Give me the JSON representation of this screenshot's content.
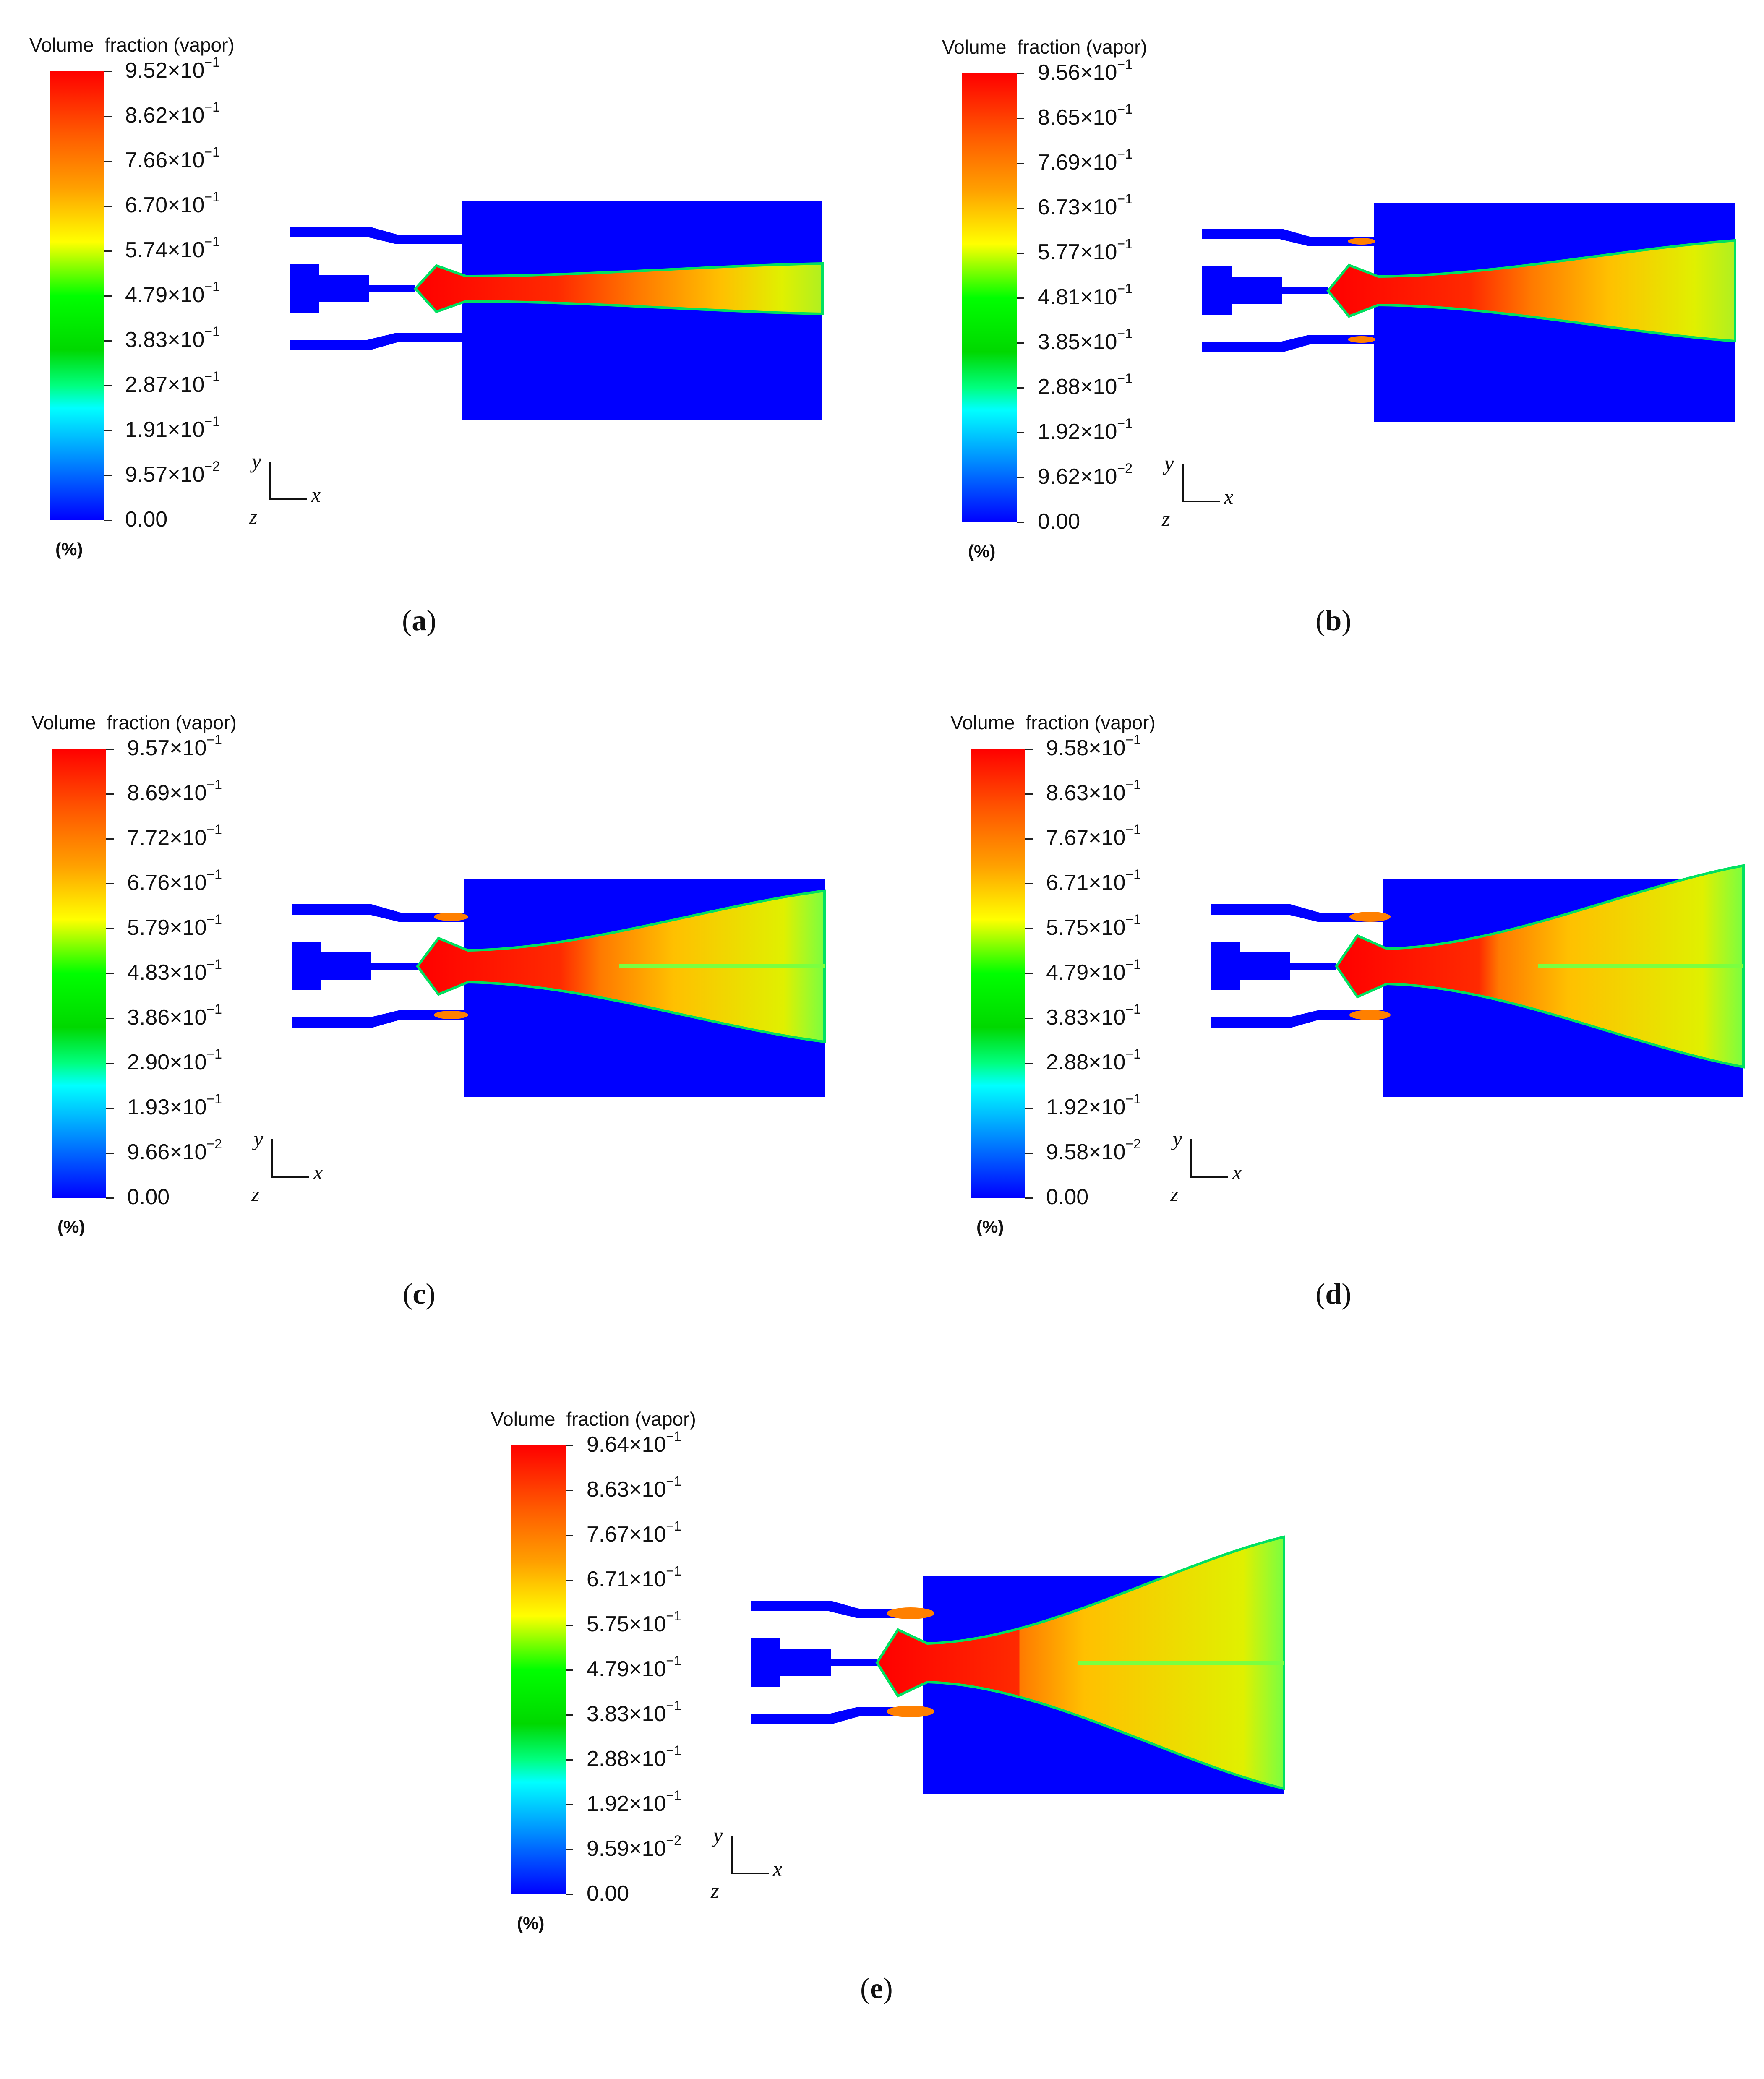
{
  "legend_title_word1": "Volume",
  "legend_title_word2": "fraction (vapor)",
  "unit_label": "(%)",
  "axis_labels": {
    "y": "y",
    "z": "z",
    "x": "x"
  },
  "colormap": [
    "#ff0000",
    "#ff5a00",
    "#ffa000",
    "#ffff00",
    "#00ff00",
    "#00ffff",
    "#0000ff"
  ],
  "panels": [
    {
      "id": "a",
      "caption": "a",
      "ticks": [
        {
          "m": "9.52×10",
          "e": "−1"
        },
        {
          "m": "8.62×10",
          "e": "−1"
        },
        {
          "m": "7.66×10",
          "e": "−1"
        },
        {
          "m": "6.70×10",
          "e": "−1"
        },
        {
          "m": "5.74×10",
          "e": "−1"
        },
        {
          "m": "4.79×10",
          "e": "−1"
        },
        {
          "m": "3.83×10",
          "e": "−1"
        },
        {
          "m": "2.87×10",
          "e": "−1"
        },
        {
          "m": "1.91×10",
          "e": "−1"
        },
        {
          "m": "9.57×10",
          "e": "−2"
        },
        {
          "m": "0.00",
          "e": ""
        }
      ]
    },
    {
      "id": "b",
      "caption": "b",
      "ticks": [
        {
          "m": "9.56×10",
          "e": "−1"
        },
        {
          "m": "8.65×10",
          "e": "−1"
        },
        {
          "m": "7.69×10",
          "e": "−1"
        },
        {
          "m": "6.73×10",
          "e": "−1"
        },
        {
          "m": "5.77×10",
          "e": "−1"
        },
        {
          "m": "4.81×10",
          "e": "−1"
        },
        {
          "m": "3.85×10",
          "e": "−1"
        },
        {
          "m": "2.88×10",
          "e": "−1"
        },
        {
          "m": "1.92×10",
          "e": "−1"
        },
        {
          "m": "9.62×10",
          "e": "−2"
        },
        {
          "m": "0.00",
          "e": ""
        }
      ]
    },
    {
      "id": "c",
      "caption": "c",
      "ticks": [
        {
          "m": "9.57×10",
          "e": "−1"
        },
        {
          "m": "8.69×10",
          "e": "−1"
        },
        {
          "m": "7.72×10",
          "e": "−1"
        },
        {
          "m": "6.76×10",
          "e": "−1"
        },
        {
          "m": "5.79×10",
          "e": "−1"
        },
        {
          "m": "4.83×10",
          "e": "−1"
        },
        {
          "m": "3.86×10",
          "e": "−1"
        },
        {
          "m": "2.90×10",
          "e": "−1"
        },
        {
          "m": "1.93×10",
          "e": "−1"
        },
        {
          "m": "9.66×10",
          "e": "−2"
        },
        {
          "m": "0.00",
          "e": ""
        }
      ]
    },
    {
      "id": "d",
      "caption": "d",
      "ticks": [
        {
          "m": "9.58×10",
          "e": "−1"
        },
        {
          "m": "8.63×10",
          "e": "−1"
        },
        {
          "m": "7.67×10",
          "e": "−1"
        },
        {
          "m": "6.71×10",
          "e": "−1"
        },
        {
          "m": "5.75×10",
          "e": "−1"
        },
        {
          "m": "4.79×10",
          "e": "−1"
        },
        {
          "m": "3.83×10",
          "e": "−1"
        },
        {
          "m": "2.88×10",
          "e": "−1"
        },
        {
          "m": "1.92×10",
          "e": "−1"
        },
        {
          "m": "9.58×10",
          "e": "−2"
        },
        {
          "m": "0.00",
          "e": ""
        }
      ]
    },
    {
      "id": "e",
      "caption": "e",
      "ticks": [
        {
          "m": "9.64×10",
          "e": "−1"
        },
        {
          "m": "8.63×10",
          "e": "−1"
        },
        {
          "m": "7.67×10",
          "e": "−1"
        },
        {
          "m": "6.71×10",
          "e": "−1"
        },
        {
          "m": "5.75×10",
          "e": "−1"
        },
        {
          "m": "4.79×10",
          "e": "−1"
        },
        {
          "m": "3.83×10",
          "e": "−1"
        },
        {
          "m": "2.88×10",
          "e": "−1"
        },
        {
          "m": "1.92×10",
          "e": "−1"
        },
        {
          "m": "9.59×10",
          "e": "−2"
        },
        {
          "m": "0.00",
          "e": ""
        }
      ]
    }
  ]
}
